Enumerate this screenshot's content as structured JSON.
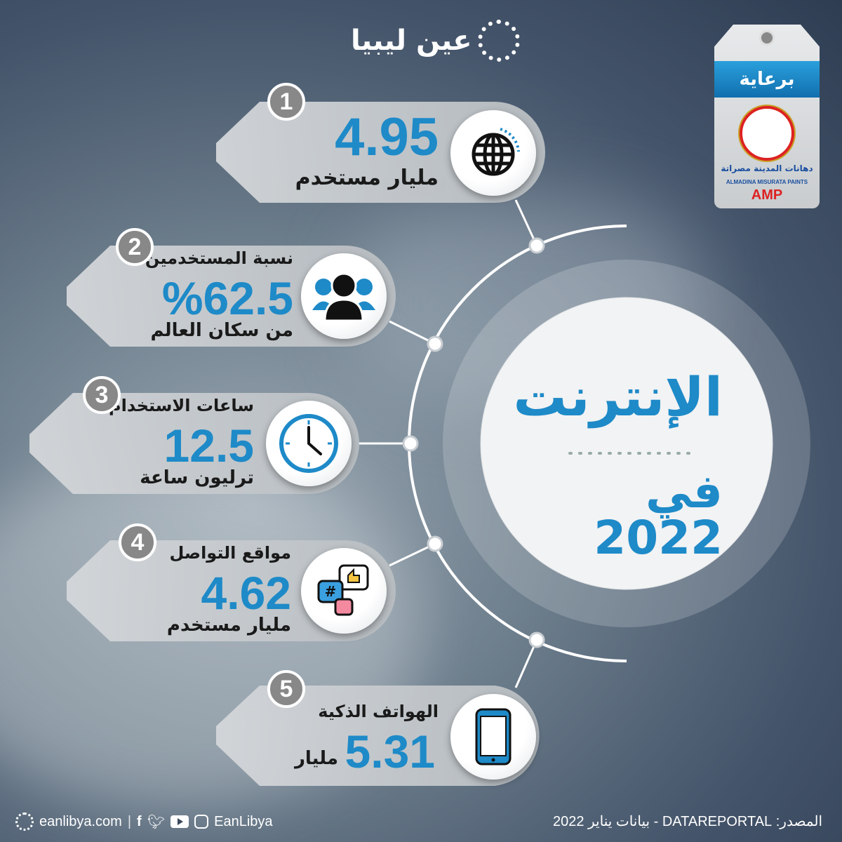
{
  "logo": {
    "text": "عين ليبيا"
  },
  "sponsor": {
    "label": "برعاية",
    "brand_ar": "دهانات المدينة مصراتة",
    "brand_en": "ALMADINA MISURATA PAINTS",
    "brand_short": "AMP"
  },
  "center": {
    "title": "الإنترنت",
    "year_line": "في 2022"
  },
  "colors": {
    "accent": "#1e8ac8",
    "card": "#c4c8cb",
    "badge": "#8a8a8a"
  },
  "items": [
    {
      "index": "1",
      "value": "4.95",
      "caption": "مليار مستخدم",
      "icon": "globe-icon"
    },
    {
      "index": "2",
      "heading": "نسبة المستخدمين",
      "value": "%62.5",
      "caption": "من سكان العالم",
      "icon": "users-icon"
    },
    {
      "index": "3",
      "heading": "ساعات الاستخدام",
      "value": "12.5",
      "caption": "ترليون ساعة",
      "icon": "clock-icon"
    },
    {
      "index": "4",
      "heading": "مواقع التواصل",
      "value": "4.62",
      "caption": "مليار مستخدم",
      "icon": "social-media-icon"
    },
    {
      "index": "5",
      "heading": "الهواتف الذكية",
      "value": "5.31",
      "caption": "مليار",
      "icon": "smartphone-icon"
    }
  ],
  "footer": {
    "website": "eanlibya.com",
    "handle": "EanLibya",
    "source": "المصدر: DATAREPORTAL - بيانات يناير 2022"
  }
}
